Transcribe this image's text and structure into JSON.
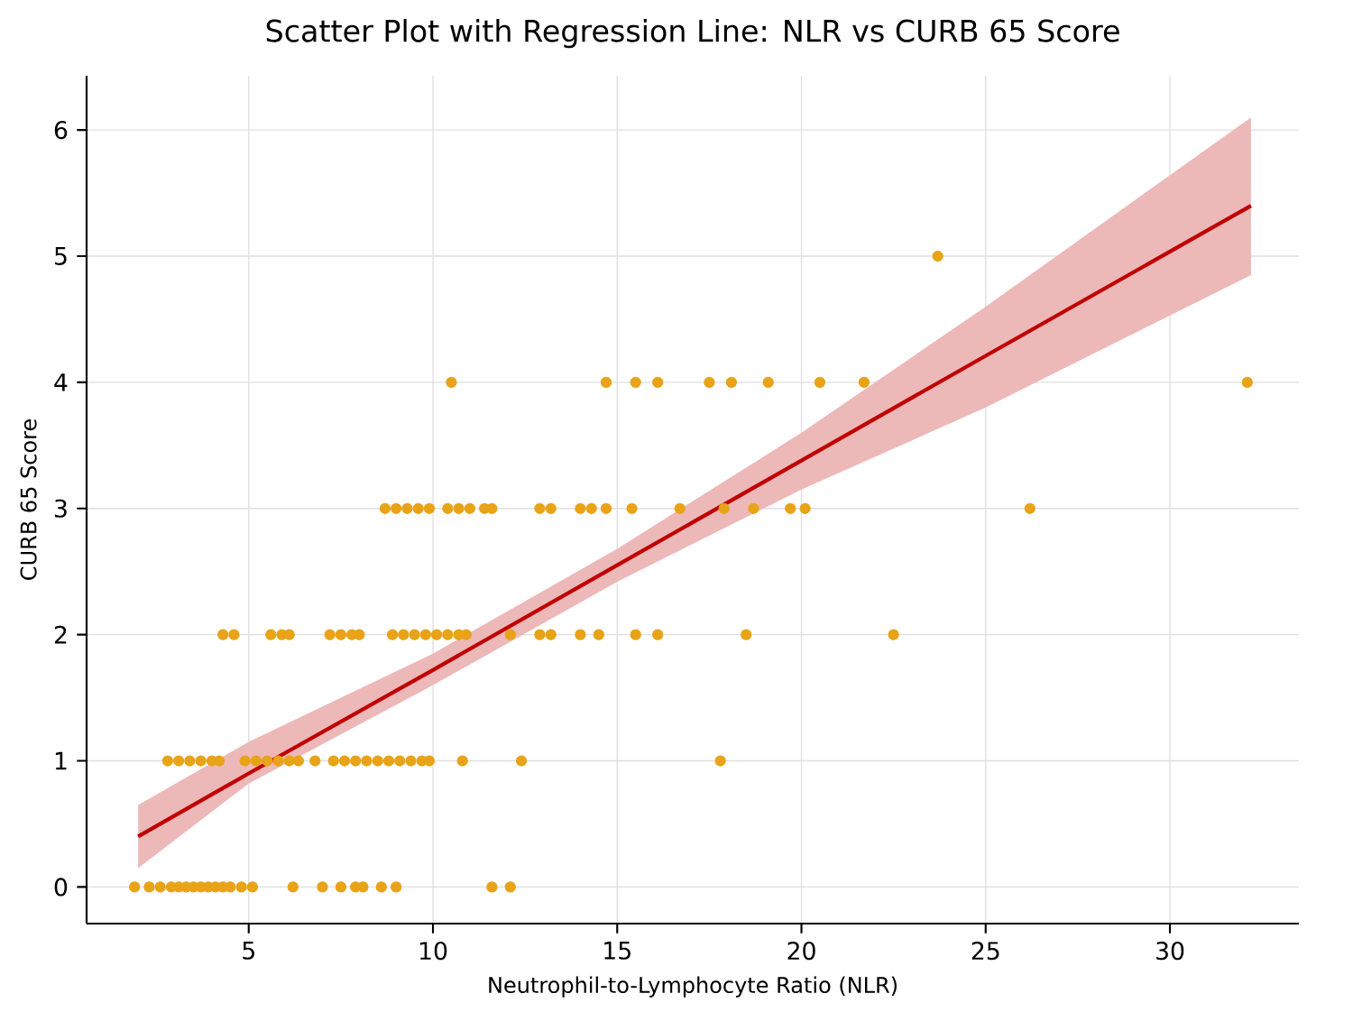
{
  "chart_data": {
    "type": "scatter",
    "title": "Scatter Plot with Regression Line: NLR vs CURB 65 Score",
    "xlabel": "Neutrophil-to-Lymphocyte Ratio (NLR)",
    "ylabel": "CURB 65 Score",
    "xlim": [
      0.6,
      33.5
    ],
    "ylim": [
      -0.29,
      6.43
    ],
    "xticks": [
      5,
      10,
      15,
      20,
      25,
      30
    ],
    "yticks": [
      0,
      1,
      2,
      3,
      4,
      5,
      6
    ],
    "grid": true,
    "series": [
      {
        "marker": "circle",
        "color": "#e8a317",
        "x": [
          1.9,
          2.3,
          2.6,
          2.9,
          3.1,
          3.3,
          3.5,
          3.7,
          3.9,
          4.1,
          4.3,
          4.5,
          4.8,
          5.1,
          6.2,
          7.0,
          7.5,
          7.9,
          8.1,
          8.6,
          9.0,
          11.6,
          12.1,
          2.8,
          3.1,
          3.4,
          3.7,
          4.0,
          4.2,
          4.9,
          5.2,
          5.5,
          5.8,
          6.1,
          6.35,
          6.8,
          7.3,
          7.6,
          7.9,
          8.2,
          8.5,
          8.8,
          9.1,
          9.4,
          9.7,
          9.9,
          10.8,
          12.4,
          17.8,
          4.3,
          4.6,
          5.6,
          5.9,
          6.1,
          7.2,
          7.5,
          7.8,
          8.0,
          8.9,
          9.2,
          9.5,
          9.8,
          10.1,
          10.4,
          10.7,
          10.9,
          12.1,
          12.9,
          13.2,
          14.0,
          14.5,
          15.5,
          16.1,
          18.5,
          22.5,
          8.7,
          9.0,
          9.3,
          9.6,
          9.9,
          10.4,
          10.7,
          11.0,
          11.4,
          11.6,
          12.9,
          13.2,
          14.0,
          14.3,
          14.7,
          15.4,
          16.7,
          17.9,
          18.7,
          19.7,
          20.1,
          26.2,
          10.5,
          14.7,
          15.5,
          16.1,
          17.5,
          18.1,
          19.1,
          20.5,
          21.7,
          32.1,
          23.7
        ],
        "values": [
          0,
          0,
          0,
          0,
          0,
          0,
          0,
          0,
          0,
          0,
          0,
          0,
          0,
          0,
          0,
          0,
          0,
          0,
          0,
          0,
          0,
          0,
          0,
          1,
          1,
          1,
          1,
          1,
          1,
          1,
          1,
          1,
          1,
          1,
          1,
          1,
          1,
          1,
          1,
          1,
          1,
          1,
          1,
          1,
          1,
          1,
          1,
          1,
          1,
          2,
          2,
          2,
          2,
          2,
          2,
          2,
          2,
          2,
          2,
          2,
          2,
          2,
          2,
          2,
          2,
          2,
          2,
          2,
          2,
          2,
          2,
          2,
          2,
          2,
          2,
          3,
          3,
          3,
          3,
          3,
          3,
          3,
          3,
          3,
          3,
          3,
          3,
          3,
          3,
          3,
          3,
          3,
          3,
          3,
          3,
          3,
          3,
          4,
          4,
          4,
          4,
          4,
          4,
          4,
          4,
          4,
          4,
          5
        ]
      },
      {
        "type": "line",
        "marker": "none",
        "color": "#c00000",
        "x": [
          2,
          5,
          10,
          15,
          20,
          25,
          32.2
        ],
        "values": [
          0.4,
          0.9,
          1.72,
          2.55,
          3.38,
          4.21,
          5.4
        ],
        "lower": [
          0.15,
          0.82,
          1.6,
          2.42,
          3.15,
          3.8,
          4.85
        ],
        "upper": [
          0.65,
          1.15,
          1.85,
          2.68,
          3.6,
          4.6,
          6.1
        ]
      }
    ]
  }
}
